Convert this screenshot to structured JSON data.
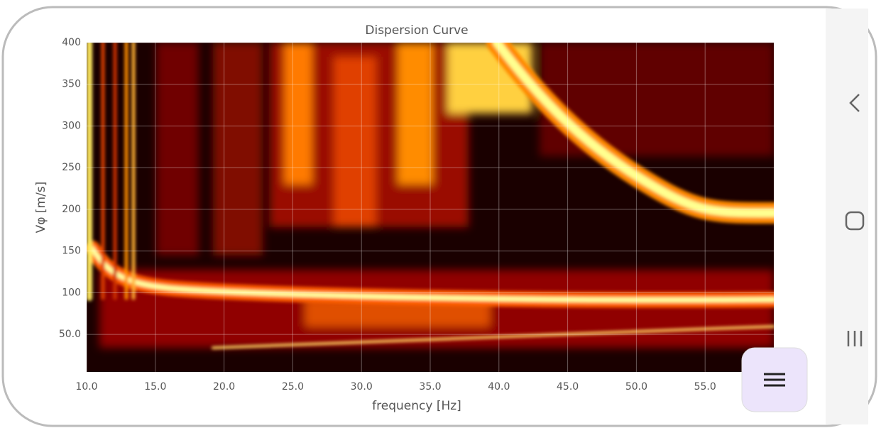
{
  "chart_data": {
    "type": "heatmap",
    "title": "Dispersion Curve",
    "xlabel": "frequency [Hz]",
    "ylabel": "Vφ [m/s]",
    "xlim": [
      10,
      60
    ],
    "xticks": [
      {
        "value": 10,
        "label": "10.0"
      },
      {
        "value": 15,
        "label": "15.0"
      },
      {
        "value": 20,
        "label": "20.0"
      },
      {
        "value": 25,
        "label": "25.0"
      },
      {
        "value": 30,
        "label": "30.0"
      },
      {
        "value": 35,
        "label": "35.0"
      },
      {
        "value": 40,
        "label": "40.0"
      },
      {
        "value": 45,
        "label": "45.0"
      },
      {
        "value": 50,
        "label": "50.0"
      },
      {
        "value": 55,
        "label": "55.0"
      }
    ],
    "ylim": [
      5,
      400
    ],
    "yticks": [
      {
        "value": 50,
        "label": "50.0"
      },
      100,
      150,
      200,
      250,
      300,
      350,
      400
    ],
    "grid": true
  }
}
